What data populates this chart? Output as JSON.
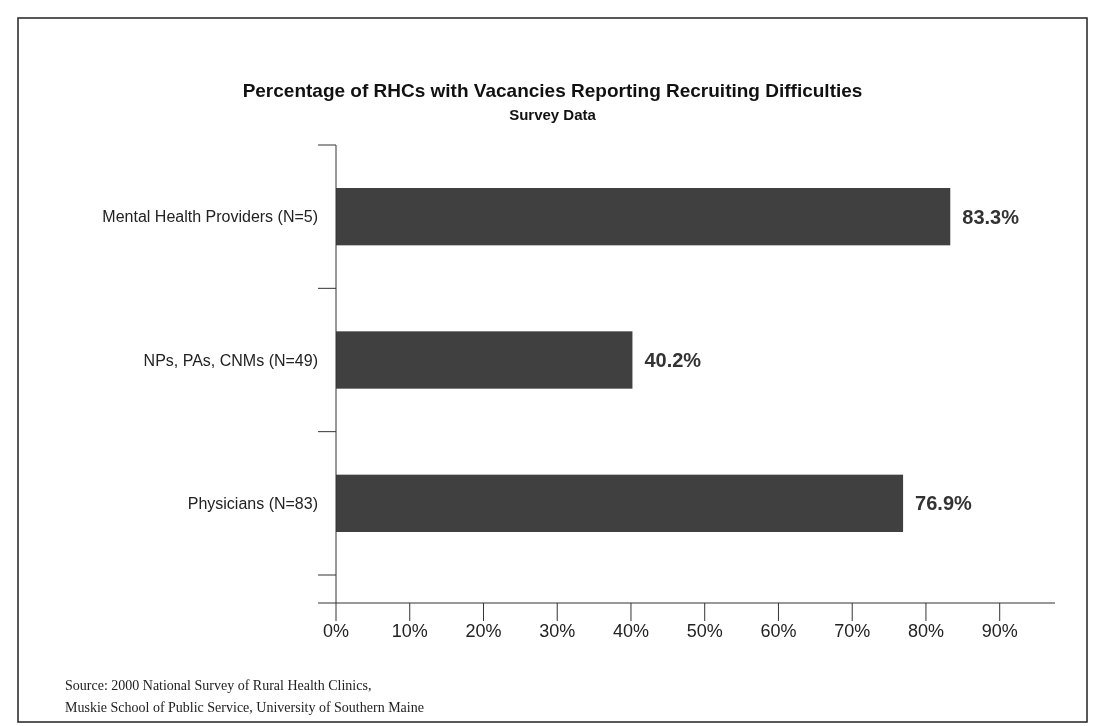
{
  "chart_data": {
    "type": "bar",
    "orientation": "horizontal",
    "title": "Percentage of RHCs with Vacancies Reporting Recruiting Difficulties",
    "subtitle": "Survey Data",
    "categories": [
      "Mental Health Providers (N=5)",
      "NPs, PAs, CNMs (N=49)",
      "Physicians (N=83)"
    ],
    "values": [
      83.3,
      40.2,
      76.9
    ],
    "value_labels": [
      "83.3%",
      "40.2%",
      "76.9%"
    ],
    "color": "#404040",
    "xlim": [
      0,
      97.5
    ],
    "xticks": [
      {
        "value": 0,
        "label": "0%"
      },
      {
        "value": 10,
        "label": "10%"
      },
      {
        "value": 20,
        "label": "20%"
      },
      {
        "value": 30,
        "label": "30%"
      },
      {
        "value": 40,
        "label": "40%"
      },
      {
        "value": 50,
        "label": "50%"
      },
      {
        "value": 60,
        "label": "60%"
      },
      {
        "value": 70,
        "label": "70%"
      },
      {
        "value": 80,
        "label": "80%"
      },
      {
        "value": 90,
        "label": "90%"
      }
    ],
    "annotations": [
      "Source: 2000 National Survey of Rural Health Clinics,",
      "Muskie School of Public Service, University of Southern Maine"
    ]
  }
}
